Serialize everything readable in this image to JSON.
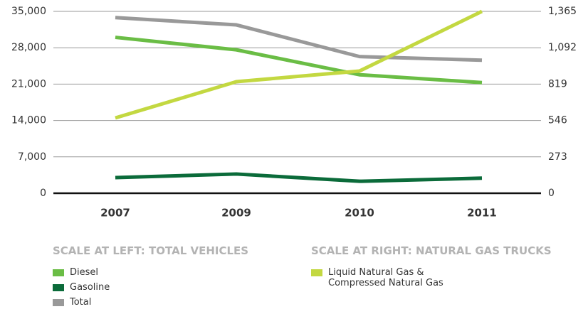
{
  "chart_data": {
    "type": "line",
    "categories": [
      "2007",
      "2009",
      "2010",
      "2011"
    ],
    "series": [
      {
        "name": "Diesel",
        "color": "#6abd45",
        "values": [
          30000,
          27600,
          22800,
          21300
        ]
      },
      {
        "name": "Gasoline",
        "color": "#0b6b3a",
        "values": [
          3000,
          3700,
          2300,
          2900
        ]
      },
      {
        "name": "Total",
        "color": "#999999",
        "values": [
          33800,
          32400,
          26300,
          25600
        ]
      },
      {
        "name": "Liquid Natural Gas & Compressed Natural Gas",
        "color": "#c3d841",
        "axis": "y2",
        "values": [
          565,
          837,
          917,
          1365
        ]
      }
    ],
    "ylim": [
      0,
      35000
    ],
    "yticks": [
      0,
      {
        "value": 7000,
        "label": "7,000"
      },
      {
        "value": 14000,
        "label": "14,000"
      },
      {
        "value": 21000,
        "label": "21,000"
      },
      {
        "value": 28000,
        "label": "28,000"
      },
      {
        "value": 35000,
        "label": "35,000"
      }
    ],
    "y2lim": [
      0,
      1365
    ],
    "y2ticks": [
      0,
      273,
      546,
      819,
      {
        "value": 1092,
        "label": "1,092"
      },
      {
        "value": 1365,
        "label": "1,365"
      }
    ],
    "annotations": [
      "SCALE AT LEFT: TOTAL VEHICLES",
      "SCALE AT RIGHT: NATURAL GAS TRUCKS"
    ],
    "grid": true
  }
}
